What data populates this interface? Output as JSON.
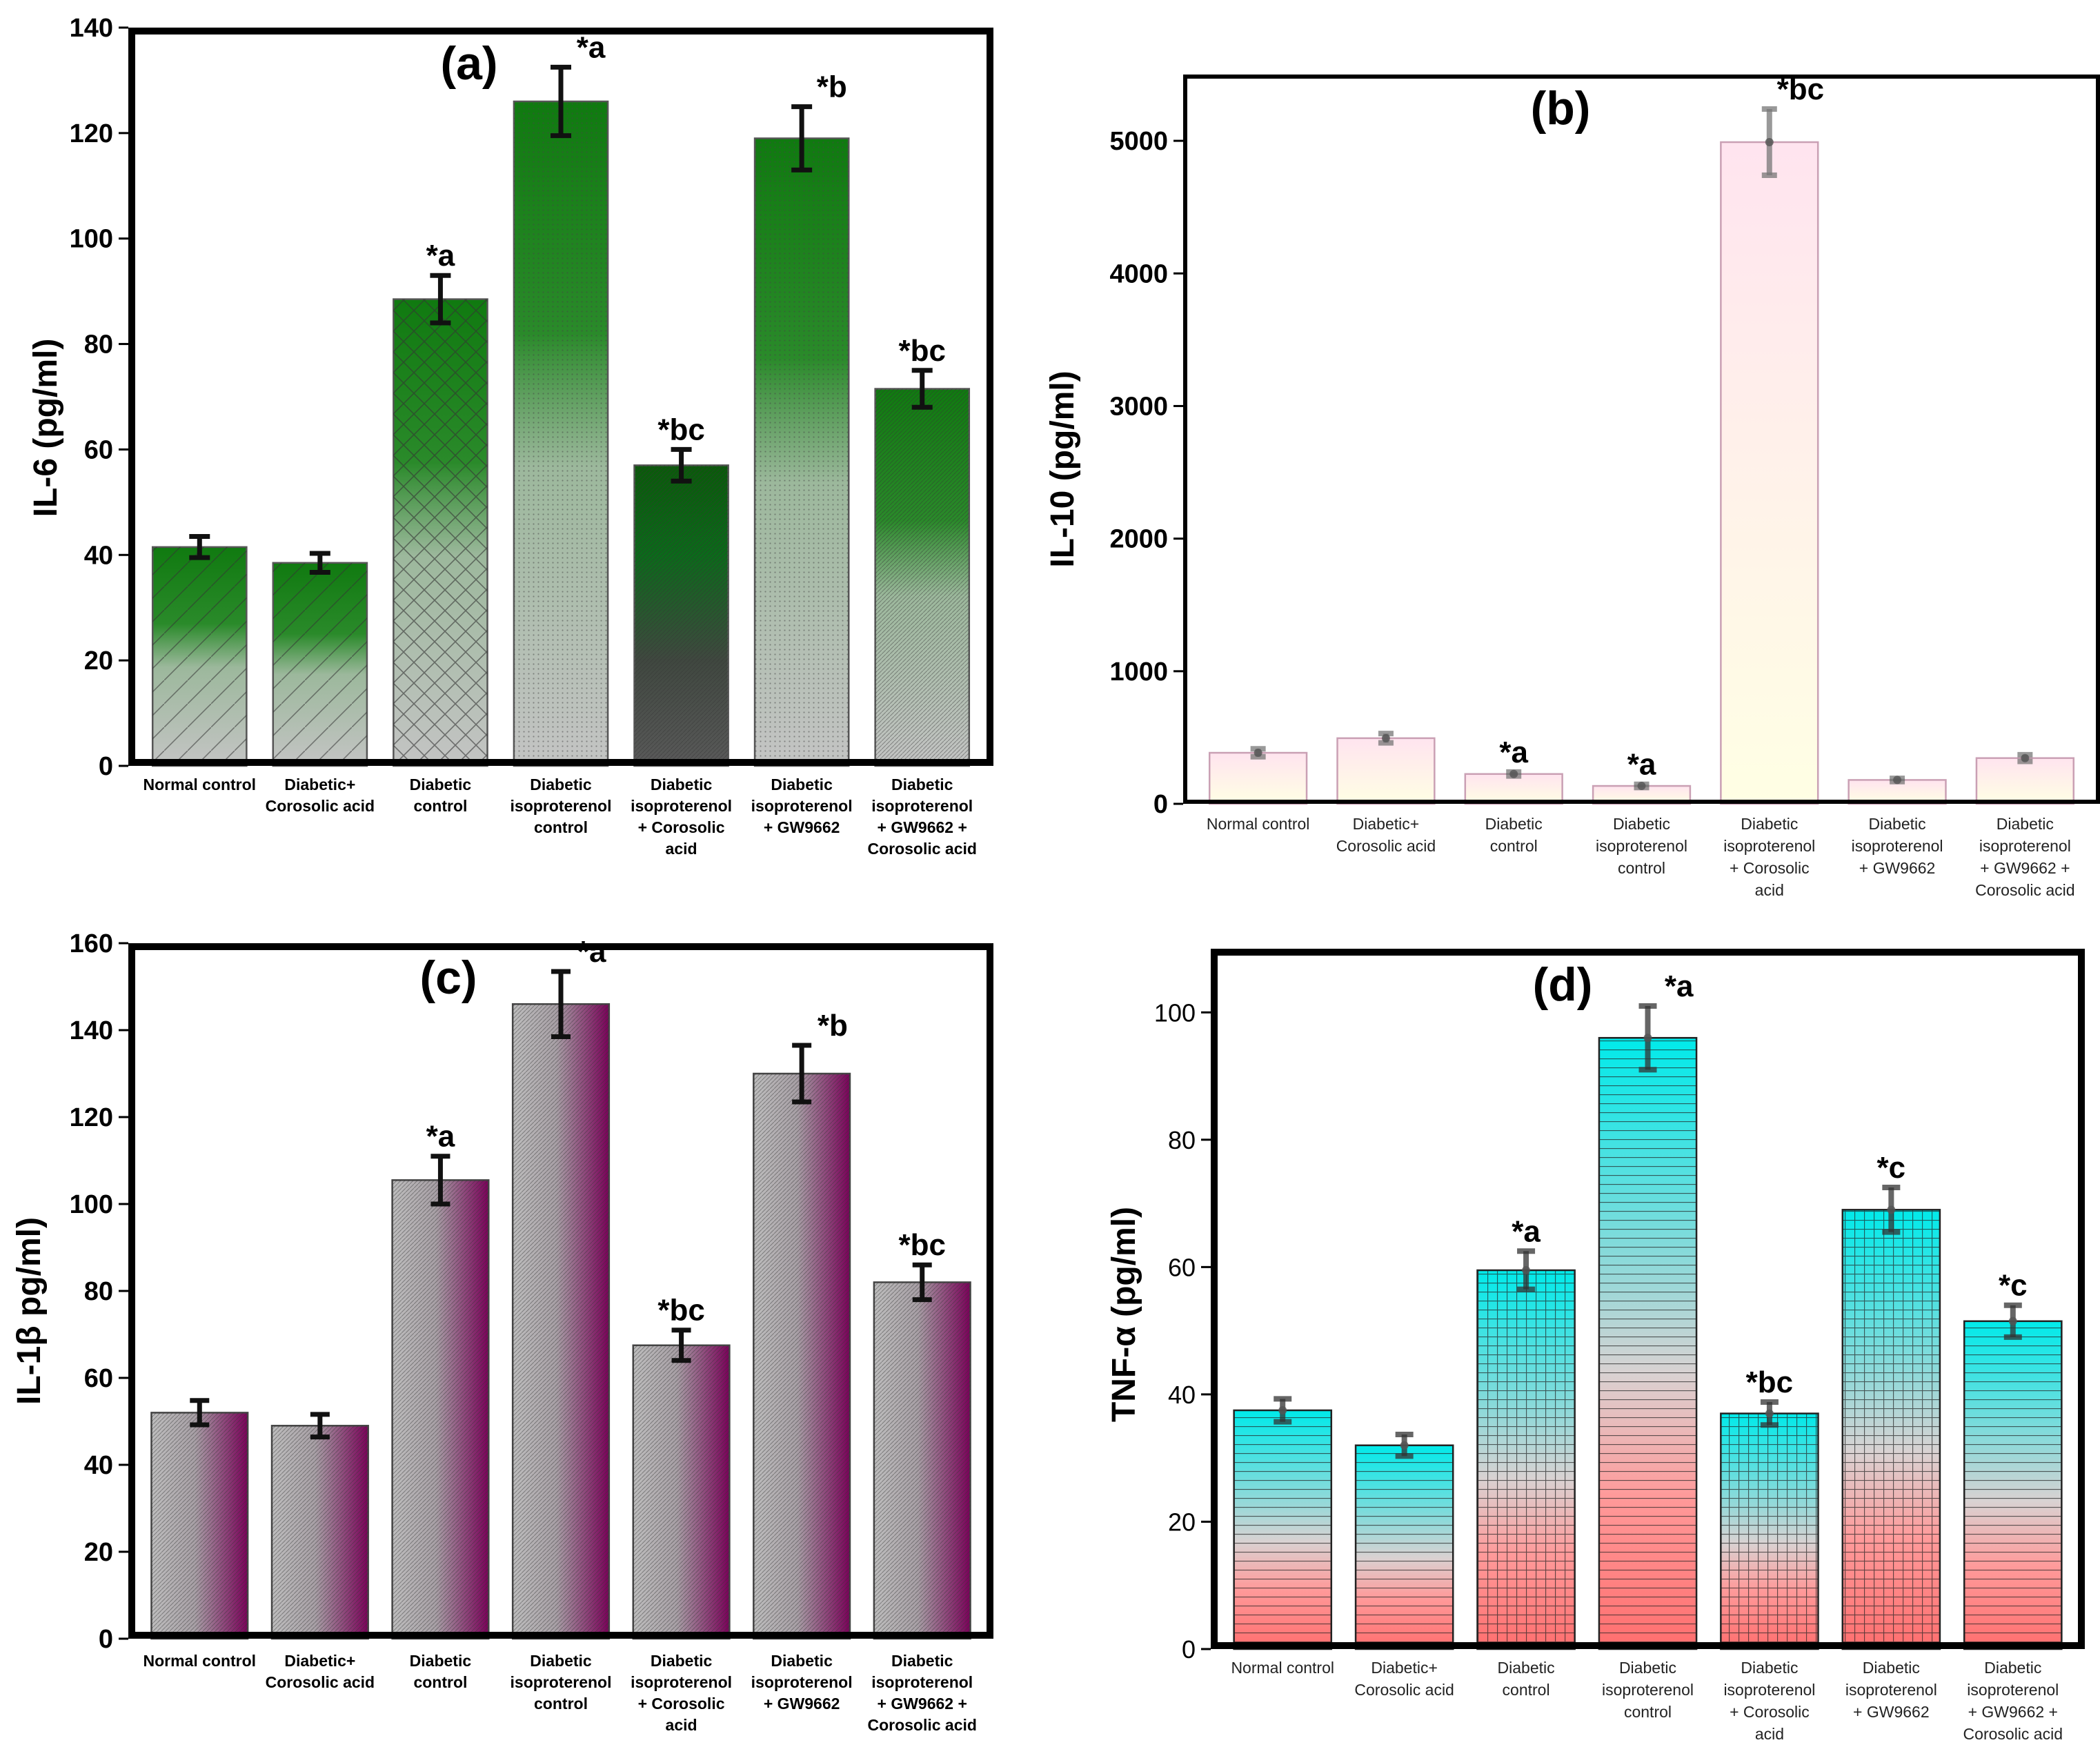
{
  "chart_data": [
    {
      "type": "bar",
      "title": "(a)",
      "xlabel": "",
      "ylabel": "IL-6  (pg/ml)",
      "ylim": [
        0,
        140
      ],
      "yticks": [
        0,
        20,
        40,
        60,
        80,
        100,
        120,
        140
      ],
      "categories": [
        [
          "Normal control"
        ],
        [
          "Diabetic+",
          "Corosolic acid"
        ],
        [
          "Diabetic",
          "control"
        ],
        [
          "Diabetic",
          "isoproterenol",
          "control"
        ],
        [
          "Diabetic",
          "isoproterenol",
          "+ Corosolic",
          "acid"
        ],
        [
          "Diabetic",
          "isoproterenol",
          "+ GW9662"
        ],
        [
          "Diabetic",
          "isoproterenol",
          "+ GW9662 +",
          "Corosolic acid"
        ]
      ],
      "values": [
        41.5,
        38.5,
        88.5,
        126,
        57,
        119,
        71.5
      ],
      "errors": [
        2.0,
        1.8,
        4.5,
        6.5,
        3.0,
        6.0,
        3.5
      ],
      "annotations": [
        "",
        "",
        "*a",
        "*a",
        "*bc",
        "*b",
        "*bc"
      ],
      "colors": {
        "top": "#107a10",
        "bottom": "#c2c2c2",
        "edge": "#555555"
      },
      "grid": false
    },
    {
      "type": "bar",
      "title": "(b)",
      "xlabel": "",
      "ylabel": "IL-10 (pg/ml)",
      "ylim": [
        0,
        5500
      ],
      "yticks": [
        0,
        1000,
        2000,
        3000,
        4000,
        5000
      ],
      "categories": [
        [
          "Normal control"
        ],
        [
          "Diabetic+",
          "Corosolic acid"
        ],
        [
          "Diabetic",
          "control"
        ],
        [
          "Diabetic",
          "isoproterenol",
          "control"
        ],
        [
          "Diabetic",
          "isoproterenol",
          "+ Corosolic",
          "acid"
        ],
        [
          "Diabetic",
          "isoproterenol",
          "+ GW9662"
        ],
        [
          "Diabetic",
          "isoproterenol",
          "+ GW9662 +",
          "Corosolic acid"
        ]
      ],
      "values": [
        385,
        495,
        225,
        135,
        4990,
        180,
        345
      ],
      "errors": [
        30,
        35,
        15,
        12,
        250,
        12,
        25
      ],
      "annotations": [
        "",
        "",
        "*a",
        "*a",
        "*bc",
        "",
        ""
      ],
      "colors": {
        "top": "#ffe6f0",
        "bottom": "#ffffe6",
        "edge": "#caa0b4"
      },
      "grid": false
    },
    {
      "type": "bar",
      "title": "(c)",
      "xlabel": "",
      "ylabel": "IL-1β pg/ml)",
      "ylim": [
        0,
        160
      ],
      "yticks": [
        0,
        20,
        40,
        60,
        80,
        100,
        120,
        140,
        160
      ],
      "categories": [
        [
          "Normal control"
        ],
        [
          "Diabetic+",
          "Corosolic acid"
        ],
        [
          "Diabetic",
          "control"
        ],
        [
          "Diabetic",
          "isoproterenol",
          "control"
        ],
        [
          "Diabetic",
          "isoproterenol",
          "+ Corosolic",
          "acid"
        ],
        [
          "Diabetic",
          "isoproterenol",
          "+ GW9662"
        ],
        [
          "Diabetic",
          "isoproterenol",
          "+ GW9662 +",
          "Corosolic acid"
        ]
      ],
      "values": [
        52,
        49,
        105.5,
        146,
        67.5,
        130,
        82
      ],
      "errors": [
        2.8,
        2.6,
        5.5,
        7.5,
        3.5,
        6.5,
        4.0
      ],
      "annotations": [
        "",
        "",
        "*a",
        "*a",
        "*bc",
        "*b",
        "*bc"
      ],
      "colors": {
        "left": "#b4b4b4",
        "right": "#800060",
        "edge": "#444444"
      },
      "grid": false
    },
    {
      "type": "bar",
      "title": "(d)",
      "xlabel": "",
      "ylabel": "TNF-α (pg/ml)",
      "ylim": [
        0,
        110
      ],
      "yticks": [
        0,
        20,
        40,
        60,
        80,
        100
      ],
      "categories": [
        [
          "Normal control"
        ],
        [
          "Diabetic+",
          "Corosolic acid"
        ],
        [
          "Diabetic",
          "control"
        ],
        [
          "Diabetic",
          "isoproterenol",
          "control"
        ],
        [
          "Diabetic",
          "isoproterenol",
          "+ Corosolic",
          "acid"
        ],
        [
          "Diabetic",
          "isoproterenol",
          "+ GW9662"
        ],
        [
          "Diabetic",
          "isoproterenol",
          "+ GW9662 +",
          "Corosolic acid"
        ]
      ],
      "values": [
        37.5,
        32,
        59.5,
        96,
        37,
        69,
        51.5
      ],
      "errors": [
        1.8,
        1.7,
        3.0,
        5.0,
        1.8,
        3.5,
        2.5
      ],
      "annotations": [
        "",
        "",
        "*a",
        "*a",
        "*bc",
        "*c",
        "*c"
      ],
      "colors": {
        "top": "#00e8e8",
        "mid": "#d8d8d8",
        "bottom": "#ff7070",
        "edge": "#222222"
      },
      "grid": false
    }
  ]
}
